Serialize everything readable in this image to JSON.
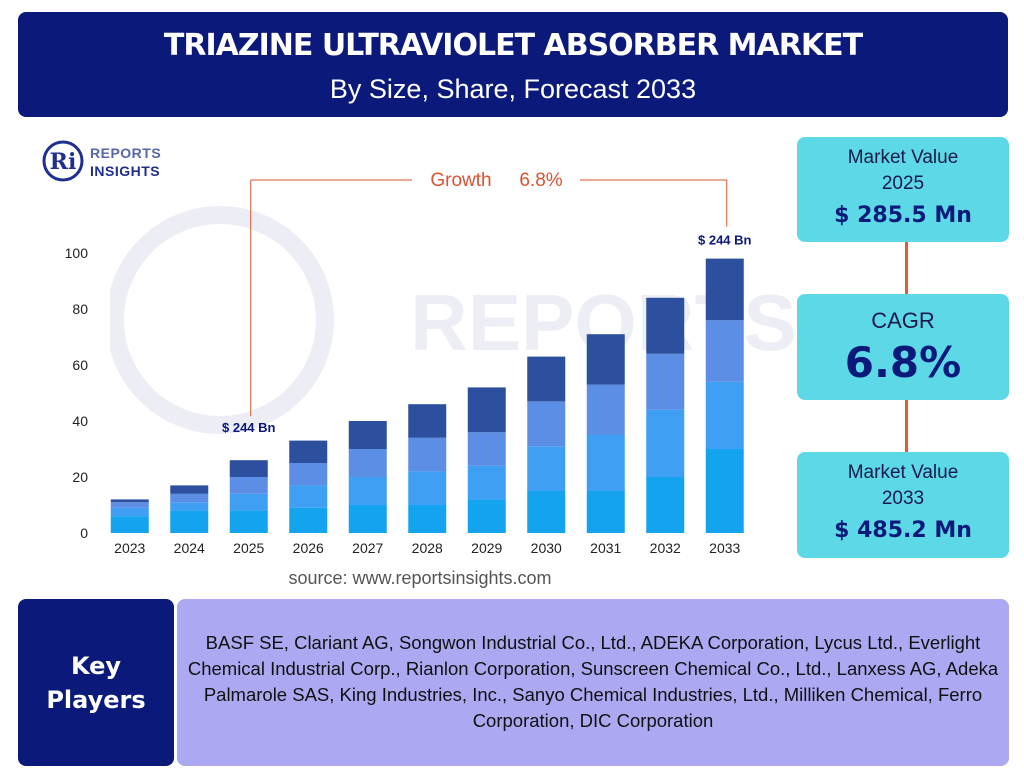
{
  "header": {
    "title": "TRIAZINE ULTRAVIOLET ABSORBER MARKET",
    "subtitle": "By Size, Share, Forecast 2033"
  },
  "logo": {
    "line1": "REPORTS",
    "line2": "INSIGHTS",
    "mark": "Ri"
  },
  "watermark": "REPORTS INSIGHTS",
  "colors": {
    "navy": "#0b1a7a",
    "cyan_card": "#5cd8e6",
    "players_bg": "#aca8f2",
    "growth_orange": "#d9532f",
    "seg1": "#14a3ef",
    "seg2": "#3f9ff2",
    "seg3": "#5c8ee6",
    "seg4": "#2c4f9e"
  },
  "chart_data": {
    "type": "bar",
    "stacked": true,
    "categories": [
      "2023",
      "2024",
      "2025",
      "2026",
      "2027",
      "2028",
      "2029",
      "2030",
      "2031",
      "2032",
      "2033"
    ],
    "series": [
      {
        "values": [
          6,
          8,
          8,
          9,
          10,
          10,
          12,
          15,
          15,
          20,
          30
        ]
      },
      {
        "values": [
          3,
          3,
          6,
          8,
          10,
          12,
          12,
          16,
          20,
          24,
          24
        ]
      },
      {
        "values": [
          2,
          3,
          6,
          8,
          10,
          12,
          12,
          16,
          18,
          20,
          22
        ]
      },
      {
        "values": [
          1,
          3,
          6,
          8,
          10,
          12,
          16,
          16,
          18,
          20,
          22
        ]
      }
    ],
    "ylim": [
      0,
      100
    ],
    "yticks": [
      0,
      20,
      40,
      60,
      80,
      100
    ],
    "grid": false,
    "annotations": {
      "growth_label": "Growth",
      "growth_value": "6.8%",
      "start_label": "$ 244 Bn",
      "end_label": "$ 244 Bn"
    }
  },
  "source": "source: www.reportsinsights.com",
  "cards": {
    "market_value_2025": {
      "label_line1": "Market Value",
      "label_line2": "2025",
      "value": "$ 285.5 Mn"
    },
    "cagr": {
      "label": "CAGR",
      "value": "6.8%"
    },
    "market_value_2033": {
      "label_line1": "Market Value",
      "label_line2": "2033",
      "value": "$ 485.2 Mn"
    }
  },
  "key_players": {
    "label_line1": "Key",
    "label_line2": "Players",
    "text": "BASF SE, Clariant AG, Songwon Industrial Co., Ltd., ADEKA Corporation, Lycus Ltd., Everlight Chemical Industrial Corp., Rianlon Corporation, Sunscreen Chemical Co., Ltd., Lanxess AG, Adeka Palmarole SAS, King Industries, Inc., Sanyo Chemical Industries, Ltd., Milliken Chemical, Ferro Corporation, DIC Corporation"
  }
}
